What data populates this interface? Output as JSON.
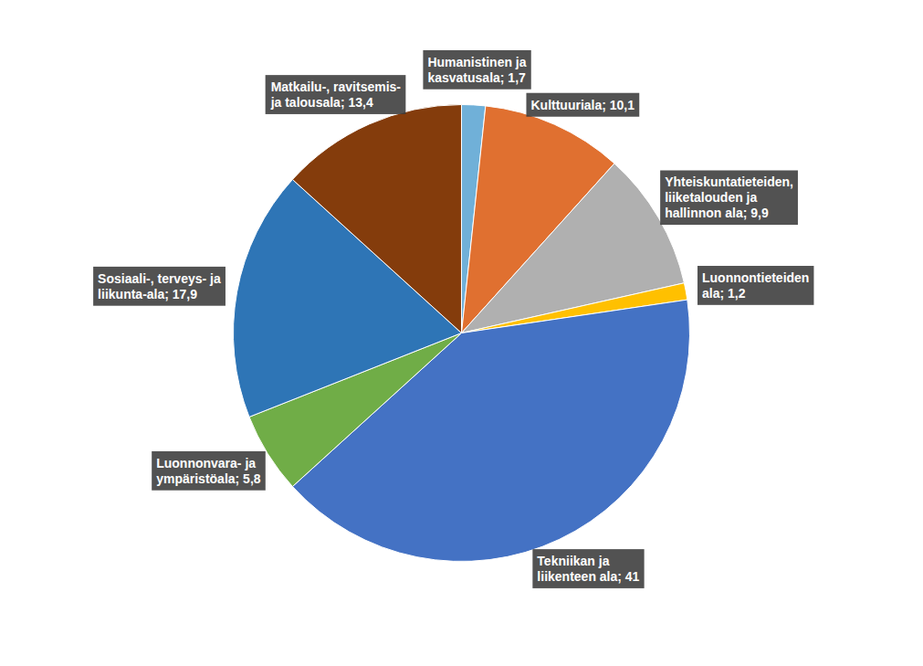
{
  "chart_data": {
    "type": "pie",
    "categories": [
      "Humanistinen ja\nkasvatusala; 1,7",
      "Kulttuuriala; 10,1",
      "Yhteiskuntatieteiden,\nliiketalouden ja\nhallinnon ala; 9,9",
      "Luonnontieteiden\nala; 1,2",
      "Tekniikan ja\nliikenteen ala; 41",
      "Luonnonvara- ja\nympäristöala; 5,8",
      "Sosiaali-, terveys- ja\nliikunta-ala; 17,9",
      "Matkailu-, ravitsemis-\nja talousala; 13,4"
    ],
    "values": [
      1.7,
      10.1,
      9.9,
      1.2,
      41.0,
      5.8,
      17.9,
      13.4
    ],
    "colors": [
      "#70B0D8",
      "#E07030",
      "#B0B0B0",
      "#FFC000",
      "#4472C4",
      "#70AD47",
      "#2E75B6",
      "#843C0C"
    ]
  }
}
